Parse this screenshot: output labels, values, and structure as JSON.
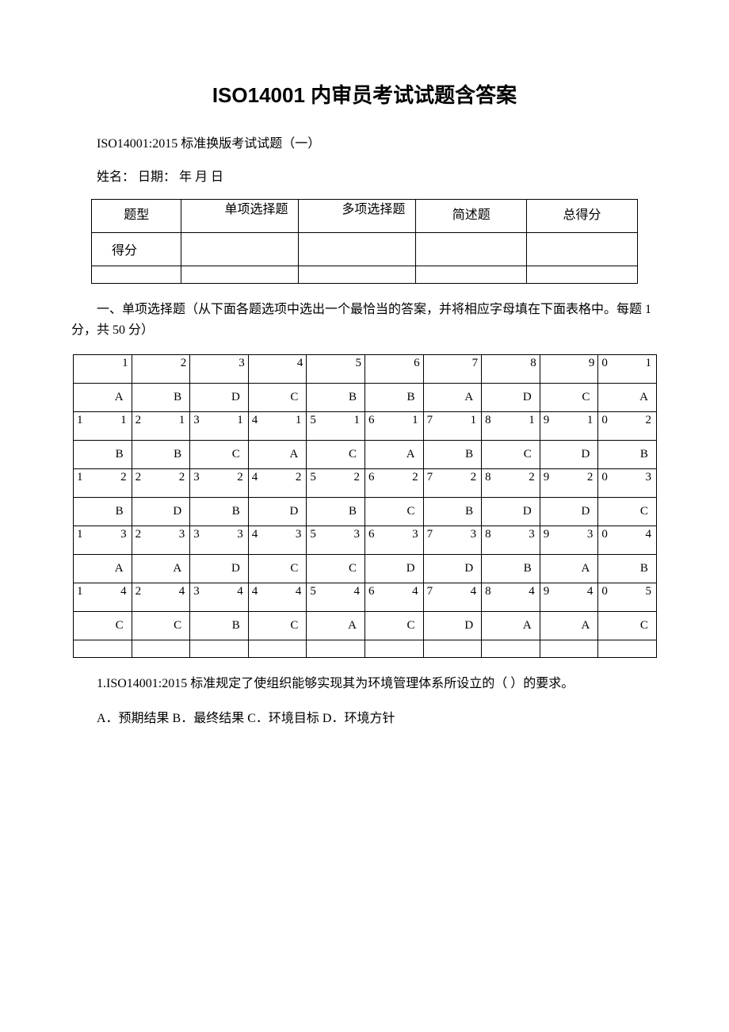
{
  "title": "ISO14001 内审员考试试题含答案",
  "subtitle": "ISO14001:2015 标准换版考试试题（一）",
  "name_date": "姓名：   日期：  年 月  日",
  "score_table": {
    "headers": [
      "题型",
      "单项选择题",
      "多项选择题",
      "简述题",
      "总得分"
    ],
    "row2_label": "得分"
  },
  "section1_title": "一、单项选择题（从下面各题选项中选出一个最恰当的答案，并将相应字母填在下面表格中。每题 1 分，共 50 分）",
  "answer_grid": {
    "rows": [
      {
        "nums": [
          "1",
          "2",
          "3",
          "4",
          "5",
          "6",
          "7",
          "8",
          "9",
          "10"
        ],
        "split10": {
          "left": "0",
          "right": "1"
        },
        "answers": [
          "A",
          "B",
          "D",
          "C",
          "B",
          "B",
          "A",
          "D",
          "C",
          "A"
        ]
      },
      {
        "nums": [
          "11",
          "12",
          "13",
          "14",
          "15",
          "16",
          "17",
          "18",
          "19",
          "20"
        ],
        "answers": [
          "B",
          "B",
          "C",
          "A",
          "C",
          "A",
          "B",
          "C",
          "D",
          "B"
        ]
      },
      {
        "nums": [
          "21",
          "22",
          "23",
          "24",
          "25",
          "26",
          "27",
          "28",
          "29",
          "30"
        ],
        "answers": [
          "B",
          "D",
          "B",
          "D",
          "B",
          "C",
          "B",
          "D",
          "D",
          "C"
        ]
      },
      {
        "nums": [
          "31",
          "32",
          "33",
          "34",
          "35",
          "36",
          "37",
          "38",
          "39",
          "40"
        ],
        "answers": [
          "A",
          "A",
          "D",
          "C",
          "C",
          "D",
          "D",
          "B",
          "A",
          "B"
        ]
      },
      {
        "nums": [
          "41",
          "42",
          "43",
          "44",
          "45",
          "46",
          "47",
          "48",
          "49",
          "50"
        ],
        "answers": [
          "C",
          "C",
          "B",
          "C",
          "A",
          "C",
          "D",
          "A",
          "A",
          "C"
        ]
      }
    ]
  },
  "q1": {
    "text": "1.ISO14001:2015 标准规定了使组织能够实现其为环境管理体系所设立的（ ）的要求。",
    "options": "A．预期结果 B．最终结果 C．环境目标 D．环境方针"
  },
  "colors": {
    "text": "#000000",
    "background": "#ffffff",
    "border": "#000000"
  },
  "fonts": {
    "title_size": 26,
    "body_size": 16,
    "title_family": "SimHei",
    "body_family": "SimSun"
  }
}
